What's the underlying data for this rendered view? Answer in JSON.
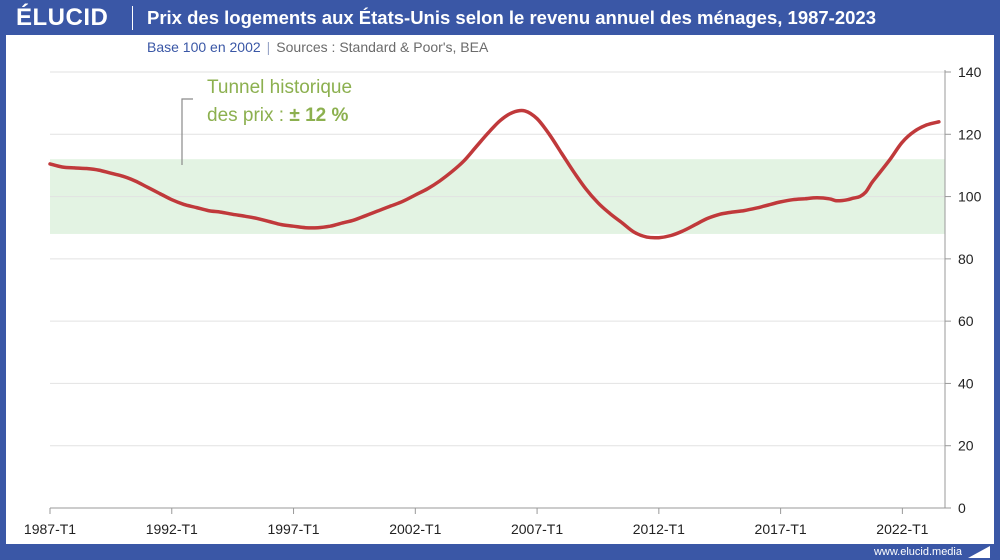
{
  "header": {
    "logo": "ÉLUCID",
    "title": "Prix des logements aux États-Unis selon le revenu annuel des ménages, 1987-2023"
  },
  "subtitle": {
    "base": "Base 100 en 2002",
    "separator": "|",
    "sources": "Sources : Standard & Poor's, BEA"
  },
  "footer": {
    "url": "www.elucid.media"
  },
  "colors": {
    "brand": "#3a57a6",
    "line": "#c0393b",
    "band": "#e3f3e3",
    "annotation": "#8cb04f"
  },
  "chart_data": {
    "type": "line",
    "title": "Prix des logements aux États-Unis selon le revenu annuel des ménages, 1987-2023",
    "subtitle": "Base 100 en 2002",
    "xlabel": "",
    "ylabel": "",
    "x_range": [
      1987.0,
      2023.75
    ],
    "ylim": [
      0,
      140
    ],
    "y_ticks": [
      0,
      20,
      40,
      60,
      80,
      100,
      120,
      140
    ],
    "x_ticks": [
      {
        "x": 1987.0,
        "label": "1987-T1"
      },
      {
        "x": 1992.0,
        "label": "1992-T1"
      },
      {
        "x": 1997.0,
        "label": "1997-T1"
      },
      {
        "x": 2002.0,
        "label": "2002-T1"
      },
      {
        "x": 2007.0,
        "label": "2007-T1"
      },
      {
        "x": 2012.0,
        "label": "2012-T1"
      },
      {
        "x": 2017.0,
        "label": "2017-T1"
      },
      {
        "x": 2022.0,
        "label": "2022-T1"
      }
    ],
    "grid": true,
    "y_axis_side": "right",
    "band": {
      "low": 88,
      "high": 112
    },
    "annotation": {
      "line1": "Tunnel historique",
      "line2_prefix": "des prix : ",
      "line2_value": "± 12 %"
    },
    "series": [
      {
        "color": "#c0393b",
        "points": [
          [
            1987.0,
            110.5
          ],
          [
            1987.5,
            109.5
          ],
          [
            1988.0,
            109.2
          ],
          [
            1988.5,
            109.0
          ],
          [
            1989.0,
            108.5
          ],
          [
            1989.5,
            107.5
          ],
          [
            1990.0,
            106.5
          ],
          [
            1990.5,
            105.0
          ],
          [
            1991.0,
            103.0
          ],
          [
            1991.5,
            101.0
          ],
          [
            1992.0,
            99.0
          ],
          [
            1992.5,
            97.5
          ],
          [
            1993.0,
            96.5
          ],
          [
            1993.5,
            95.5
          ],
          [
            1994.0,
            95.0
          ],
          [
            1994.5,
            94.3
          ],
          [
            1995.0,
            93.7
          ],
          [
            1995.5,
            93.0
          ],
          [
            1996.0,
            92.0
          ],
          [
            1996.5,
            91.0
          ],
          [
            1997.0,
            90.5
          ],
          [
            1997.5,
            90.0
          ],
          [
            1998.0,
            90.0
          ],
          [
            1998.5,
            90.5
          ],
          [
            1999.0,
            91.5
          ],
          [
            1999.5,
            92.5
          ],
          [
            2000.0,
            94.0
          ],
          [
            2000.5,
            95.5
          ],
          [
            2001.0,
            97.0
          ],
          [
            2001.5,
            98.5
          ],
          [
            2002.0,
            100.5
          ],
          [
            2002.5,
            102.5
          ],
          [
            2003.0,
            105.0
          ],
          [
            2003.5,
            108.0
          ],
          [
            2004.0,
            111.5
          ],
          [
            2004.5,
            116.0
          ],
          [
            2005.0,
            120.5
          ],
          [
            2005.5,
            124.5
          ],
          [
            2006.0,
            127.0
          ],
          [
            2006.5,
            127.5
          ],
          [
            2007.0,
            125.0
          ],
          [
            2007.5,
            120.0
          ],
          [
            2008.0,
            114.0
          ],
          [
            2008.5,
            108.0
          ],
          [
            2009.0,
            102.5
          ],
          [
            2009.5,
            98.0
          ],
          [
            2010.0,
            94.5
          ],
          [
            2010.5,
            91.5
          ],
          [
            2011.0,
            88.5
          ],
          [
            2011.5,
            87.0
          ],
          [
            2012.0,
            86.8
          ],
          [
            2012.5,
            87.5
          ],
          [
            2013.0,
            89.0
          ],
          [
            2013.5,
            91.0
          ],
          [
            2014.0,
            93.0
          ],
          [
            2014.5,
            94.3
          ],
          [
            2015.0,
            95.0
          ],
          [
            2015.5,
            95.5
          ],
          [
            2016.0,
            96.3
          ],
          [
            2016.5,
            97.3
          ],
          [
            2017.0,
            98.3
          ],
          [
            2017.5,
            99.0
          ],
          [
            2018.0,
            99.3
          ],
          [
            2018.5,
            99.6
          ],
          [
            2019.0,
            99.3
          ],
          [
            2019.25,
            98.7
          ],
          [
            2019.5,
            98.7
          ],
          [
            2019.75,
            99.0
          ],
          [
            2020.0,
            99.5
          ],
          [
            2020.25,
            100.0
          ],
          [
            2020.5,
            101.5
          ],
          [
            2020.75,
            104.5
          ],
          [
            2021.0,
            107.0
          ],
          [
            2021.5,
            112.0
          ],
          [
            2022.0,
            117.5
          ],
          [
            2022.5,
            121.0
          ],
          [
            2023.0,
            123.0
          ],
          [
            2023.5,
            124.0
          ]
        ]
      }
    ]
  }
}
